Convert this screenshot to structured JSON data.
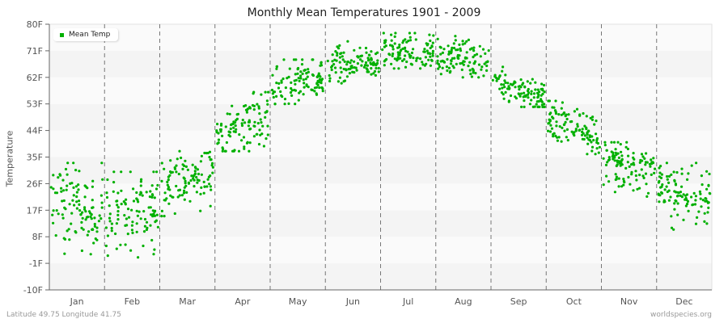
{
  "title": "Monthly Mean Temperatures 1901 - 2009",
  "footer": {
    "location": "Latitude 49.75 Longitude 41.75",
    "source": "worldspecies.org"
  },
  "legend": {
    "label": "Mean Temp",
    "color": "#00b000"
  },
  "chart_data": {
    "type": "scatter",
    "title": "Monthly Mean Temperatures 1901 - 2009",
    "xlabel": "",
    "ylabel": "Temperature",
    "ylim": [
      -10,
      80
    ],
    "yticks": [
      "-10F",
      "-1F",
      "8F",
      "17F",
      "26F",
      "35F",
      "44F",
      "53F",
      "62F",
      "71F",
      "80F"
    ],
    "categories": [
      "Jan",
      "Feb",
      "Mar",
      "Apr",
      "May",
      "Jun",
      "Jul",
      "Aug",
      "Sep",
      "Oct",
      "Nov",
      "Dec"
    ],
    "series": [
      {
        "name": "Mean Temp",
        "color": "#00b000",
        "monthly_mean": [
          18,
          16,
          27,
          46,
          60,
          67,
          71,
          69,
          58,
          45,
          32,
          22
        ],
        "monthly_spread": [
          7,
          7,
          5,
          5,
          4,
          3,
          3,
          3,
          3,
          4,
          4,
          5
        ],
        "monthly_min": [
          -1,
          -3,
          15,
          37,
          53,
          60,
          65,
          62,
          52,
          36,
          20,
          10
        ],
        "monthly_max": [
          33,
          30,
          37,
          57,
          68,
          75,
          77,
          78,
          66,
          54,
          40,
          33
        ]
      }
    ],
    "grid": {
      "horizontal_bands": true,
      "vertical_dashed_month_dividers": true
    },
    "legend_position": "top-left",
    "points_per_month": 109
  }
}
